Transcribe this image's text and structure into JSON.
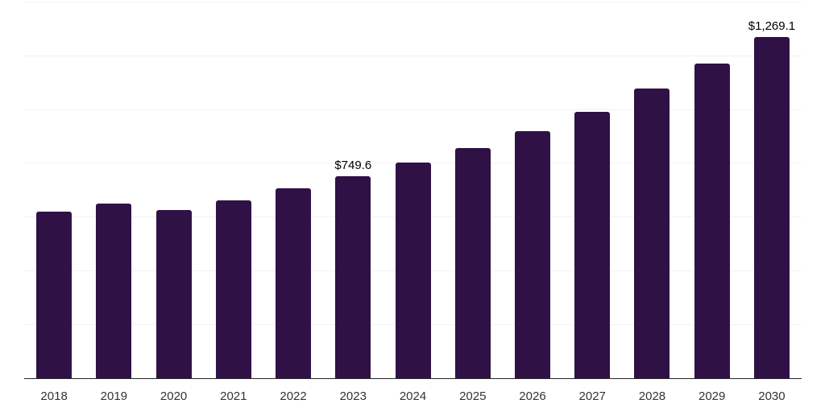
{
  "chart_data": {
    "type": "bar",
    "title": "",
    "xlabel": "",
    "ylabel": "",
    "categories": [
      "2018",
      "2019",
      "2020",
      "2021",
      "2022",
      "2023",
      "2024",
      "2025",
      "2026",
      "2027",
      "2028",
      "2029",
      "2030"
    ],
    "values": [
      618,
      648,
      624,
      661,
      706,
      749.6,
      801,
      855,
      918,
      991,
      1076,
      1168,
      1269.1
    ],
    "value_labels": {
      "2023": "$749.6",
      "2030": "$1,269.1"
    },
    "ylim": [
      0,
      1400
    ],
    "gridline_step": 200,
    "grid": "horizontal",
    "y_tick_labels_shown": false,
    "legend": "none",
    "colors": {
      "bar": "#2f1146",
      "gridline": "#f2f2f3",
      "axis_line": "#262626",
      "tick_label": "#333333",
      "value_label": "#000000",
      "background": "#ffffff"
    }
  }
}
